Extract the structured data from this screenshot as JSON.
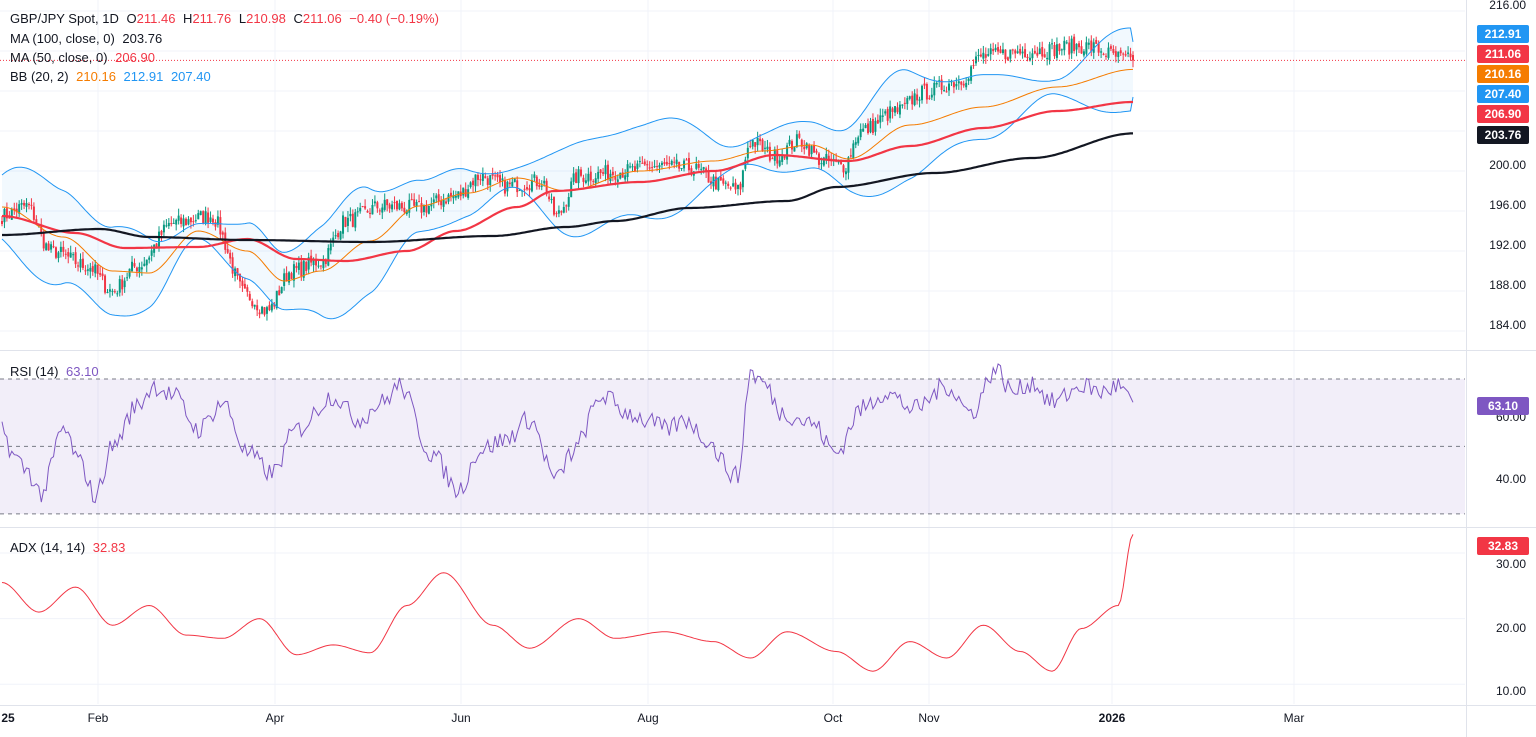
{
  "header": {
    "symbol": "GBP/JPY Spot, 1D",
    "open_label": "O",
    "open": "211.46",
    "high_label": "H",
    "high": "211.76",
    "low_label": "L",
    "low": "210.98",
    "close_label": "C",
    "close": "211.06",
    "change": "−0.40 (−0.19%)"
  },
  "indicators": {
    "ma100": {
      "label": "MA (100, close, 0)",
      "value": "203.76",
      "color": "#131722"
    },
    "ma50": {
      "label": "MA (50, close, 0)",
      "value": "206.90",
      "color": "#f23645"
    },
    "bb": {
      "label": "BB (20, 2)",
      "basis": "210.16",
      "upper": "212.91",
      "lower": "207.40",
      "basis_color": "#f57c00",
      "band_color": "#2196f3"
    },
    "rsi": {
      "label": "RSI (14)",
      "value": "63.10",
      "color": "#7e57c2"
    },
    "adx": {
      "label": "ADX (14, 14)",
      "value": "32.83",
      "color": "#f23645"
    }
  },
  "price_labels": {
    "bb_upper": "212.91",
    "close": "211.06",
    "bb_basis": "210.16",
    "bb_lower": "207.40",
    "ma50": "206.90",
    "ma100": "203.76"
  },
  "price_axis": [
    "216.00",
    "200.00",
    "196.00",
    "192.00",
    "188.00",
    "184.00"
  ],
  "rsi_axis": [
    "60.00",
    "40.00"
  ],
  "adx_axis": [
    "30.00",
    "20.00",
    "10.00"
  ],
  "x_axis": [
    "25",
    "Feb",
    "Apr",
    "Jun",
    "Aug",
    "Oct",
    "Nov",
    "2026",
    "Mar"
  ],
  "chart_data": {
    "type": "line",
    "title": "GBP/JPY Spot, 1D",
    "price_ylim": [
      182.5,
      216.5
    ],
    "rsi_ylim": [
      27,
      78
    ],
    "adx_ylim": [
      7,
      33.5
    ],
    "gridlines": true,
    "ma100_anchors": [
      [
        0,
        193.6
      ],
      [
        40,
        194.2
      ],
      [
        60,
        193.4
      ],
      [
        100,
        193.1
      ],
      [
        150,
        192.9
      ],
      [
        200,
        193.5
      ],
      [
        230,
        194.4
      ],
      [
        250,
        195.0
      ],
      [
        280,
        196.3
      ],
      [
        320,
        197.0
      ],
      [
        340,
        198.4
      ],
      [
        380,
        199.8
      ],
      [
        420,
        201.3
      ],
      [
        461,
        203.76
      ]
    ],
    "ma50_anchors": [
      [
        0,
        195.5
      ],
      [
        30,
        193.8
      ],
      [
        50,
        192.3
      ],
      [
        80,
        192.4
      ],
      [
        100,
        193.2
      ],
      [
        120,
        191.2
      ],
      [
        140,
        191.0
      ],
      [
        165,
        192.0
      ],
      [
        185,
        194.0
      ],
      [
        210,
        196.4
      ],
      [
        225,
        198.0
      ],
      [
        260,
        198.9
      ],
      [
        290,
        200.0
      ],
      [
        315,
        201.6
      ],
      [
        345,
        201.0
      ],
      [
        370,
        202.5
      ],
      [
        400,
        204.3
      ],
      [
        430,
        206.0
      ],
      [
        461,
        206.9
      ]
    ],
    "bb_basis_anchors": [
      [
        0,
        196.4
      ],
      [
        25,
        193.4
      ],
      [
        45,
        190.0
      ],
      [
        60,
        189.8
      ],
      [
        80,
        194.0
      ],
      [
        100,
        192.0
      ],
      [
        115,
        189.0
      ],
      [
        130,
        190.0
      ],
      [
        150,
        193.0
      ],
      [
        170,
        196.5
      ],
      [
        190,
        197.8
      ],
      [
        210,
        199.3
      ],
      [
        230,
        198.0
      ],
      [
        260,
        200.0
      ],
      [
        290,
        201.0
      ],
      [
        310,
        202.0
      ],
      [
        330,
        202.6
      ],
      [
        345,
        201.2
      ],
      [
        370,
        204.6
      ],
      [
        400,
        206.4
      ],
      [
        430,
        208.4
      ],
      [
        461,
        210.16
      ]
    ],
    "candle_anchors": [
      [
        0,
        195.5
      ],
      [
        10,
        196.5
      ],
      [
        20,
        192.0
      ],
      [
        35,
        190.5
      ],
      [
        45,
        188.0
      ],
      [
        55,
        190.5
      ],
      [
        70,
        194.8
      ],
      [
        85,
        195.5
      ],
      [
        100,
        187.5
      ],
      [
        108,
        186.0
      ],
      [
        118,
        190.0
      ],
      [
        130,
        191.0
      ],
      [
        140,
        195.0
      ],
      [
        155,
        196.5
      ],
      [
        170,
        196.3
      ],
      [
        185,
        197.5
      ],
      [
        195,
        199.5
      ],
      [
        205,
        198.5
      ],
      [
        220,
        199.0
      ],
      [
        226,
        195.5
      ],
      [
        235,
        199.5
      ],
      [
        255,
        200.0
      ],
      [
        265,
        200.5
      ],
      [
        280,
        200.3
      ],
      [
        295,
        198.5
      ],
      [
        300,
        198.0
      ],
      [
        305,
        203.0
      ],
      [
        315,
        201.5
      ],
      [
        325,
        203.0
      ],
      [
        335,
        201.0
      ],
      [
        343,
        200.5
      ],
      [
        350,
        204.0
      ],
      [
        365,
        206.0
      ],
      [
        375,
        207.8
      ],
      [
        390,
        209.0
      ],
      [
        400,
        211.5
      ],
      [
        420,
        212.0
      ],
      [
        440,
        212.5
      ],
      [
        461,
        211.06
      ]
    ],
    "rsi_anchors": [
      [
        0,
        55
      ],
      [
        5,
        47
      ],
      [
        10,
        43
      ],
      [
        16,
        36
      ],
      [
        25,
        55
      ],
      [
        32,
        45
      ],
      [
        38,
        35
      ],
      [
        45,
        50
      ],
      [
        55,
        62
      ],
      [
        62,
        68
      ],
      [
        70,
        65
      ],
      [
        80,
        55
      ],
      [
        90,
        63
      ],
      [
        100,
        48
      ],
      [
        110,
        42
      ],
      [
        120,
        55
      ],
      [
        135,
        65
      ],
      [
        145,
        58
      ],
      [
        155,
        63
      ],
      [
        162,
        68
      ],
      [
        175,
        48
      ],
      [
        186,
        37
      ],
      [
        195,
        49
      ],
      [
        205,
        52
      ],
      [
        215,
        58
      ],
      [
        226,
        40
      ],
      [
        232,
        48
      ],
      [
        245,
        65
      ],
      [
        255,
        60
      ],
      [
        265,
        57
      ],
      [
        270,
        55
      ],
      [
        280,
        58
      ],
      [
        285,
        53
      ],
      [
        300,
        41
      ],
      [
        305,
        72
      ],
      [
        310,
        69
      ],
      [
        318,
        60
      ],
      [
        330,
        57
      ],
      [
        340,
        48
      ],
      [
        350,
        61
      ],
      [
        360,
        66
      ],
      [
        372,
        61
      ],
      [
        385,
        68
      ],
      [
        395,
        60
      ],
      [
        405,
        73
      ],
      [
        412,
        66
      ],
      [
        420,
        69
      ],
      [
        428,
        63
      ],
      [
        441,
        68
      ],
      [
        448,
        66
      ],
      [
        455,
        68
      ],
      [
        461,
        63.1
      ]
    ],
    "adx_anchors": [
      [
        0,
        25.5
      ],
      [
        15,
        21.0
      ],
      [
        30,
        24.8
      ],
      [
        45,
        19.0
      ],
      [
        60,
        22.0
      ],
      [
        75,
        17.5
      ],
      [
        90,
        17.0
      ],
      [
        105,
        20.0
      ],
      [
        120,
        14.5
      ],
      [
        135,
        16.0
      ],
      [
        150,
        14.8
      ],
      [
        165,
        22.0
      ],
      [
        180,
        27.0
      ],
      [
        200,
        19.0
      ],
      [
        215,
        15.5
      ],
      [
        235,
        20.0
      ],
      [
        250,
        17.0
      ],
      [
        270,
        18.0
      ],
      [
        290,
        16.5
      ],
      [
        305,
        14.0
      ],
      [
        320,
        18.0
      ],
      [
        340,
        15.0
      ],
      [
        355,
        12.0
      ],
      [
        370,
        16.5
      ],
      [
        385,
        14.0
      ],
      [
        400,
        19.0
      ],
      [
        415,
        15.0
      ],
      [
        428,
        12.0
      ],
      [
        440,
        18.5
      ],
      [
        455,
        22.0
      ],
      [
        461,
        32.83
      ]
    ]
  }
}
